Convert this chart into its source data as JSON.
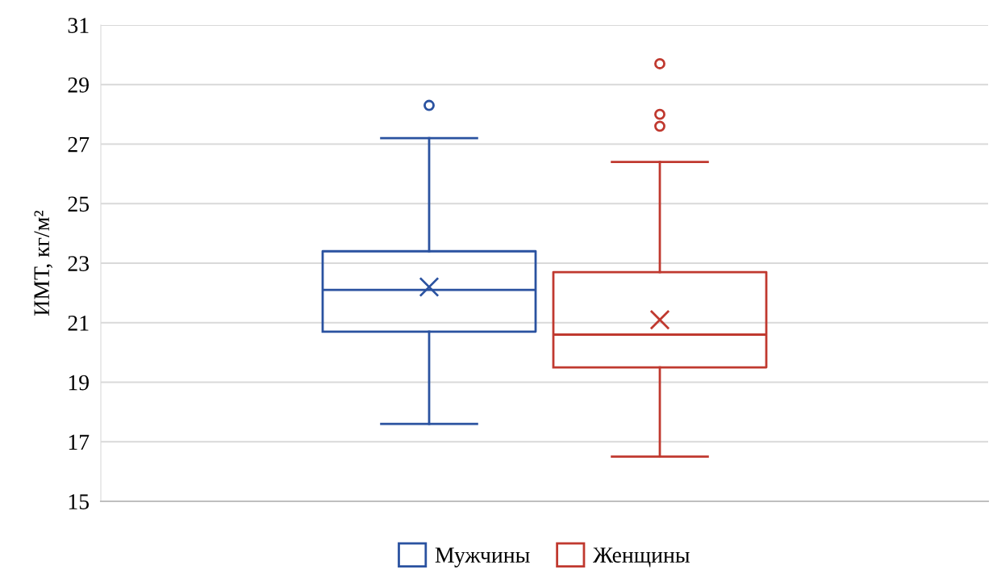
{
  "chart_data": {
    "type": "box",
    "ylabel": "ИМТ, кг/м²",
    "categories": [
      null
    ],
    "series": [
      {
        "name": "Мужчины",
        "color": "#2a52a0",
        "boxes": [
          {
            "low": 17.6,
            "q1": 20.7,
            "median": 22.1,
            "q3": 23.4,
            "high": 27.2,
            "mean": 22.2,
            "outliers": [
              28.3
            ]
          }
        ]
      },
      {
        "name": "Женщины",
        "color": "#c0392f",
        "boxes": [
          {
            "low": 16.5,
            "q1": 19.5,
            "median": 20.6,
            "q3": 22.7,
            "high": 26.4,
            "mean": 21.1,
            "outliers": [
              29.7,
              28.0,
              27.6
            ]
          }
        ]
      }
    ],
    "ylim": [
      15,
      31
    ],
    "yticks": [
      15,
      17,
      19,
      21,
      23,
      25,
      27,
      29,
      31
    ],
    "grid": "y",
    "legend": "bottom"
  }
}
